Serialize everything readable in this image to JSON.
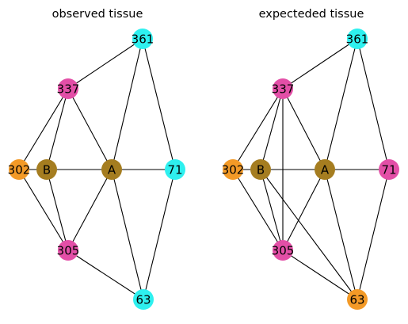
{
  "colors": {
    "cyan": "#2ef0ef",
    "pink": "#e34fa7",
    "orange": "#f39a27",
    "olive": "#a57d20"
  },
  "graphs": [
    {
      "title": "observed tissue",
      "nodes": [
        {
          "id": "361",
          "label": "361",
          "color": "cyan"
        },
        {
          "id": "337",
          "label": "337",
          "color": "pink"
        },
        {
          "id": "302",
          "label": "302",
          "color": "orange"
        },
        {
          "id": "B",
          "label": "B",
          "color": "olive"
        },
        {
          "id": "A",
          "label": "A",
          "color": "olive"
        },
        {
          "id": "71",
          "label": "71",
          "color": "cyan"
        },
        {
          "id": "305",
          "label": "305",
          "color": "pink"
        },
        {
          "id": "63",
          "label": "63",
          "color": "cyan"
        }
      ],
      "edges": [
        [
          "361",
          "337"
        ],
        [
          "361",
          "A"
        ],
        [
          "361",
          "71"
        ],
        [
          "337",
          "302"
        ],
        [
          "337",
          "B"
        ],
        [
          "337",
          "A"
        ],
        [
          "302",
          "B"
        ],
        [
          "302",
          "305"
        ],
        [
          "B",
          "A"
        ],
        [
          "B",
          "305"
        ],
        [
          "A",
          "71"
        ],
        [
          "A",
          "305"
        ],
        [
          "A",
          "63"
        ],
        [
          "71",
          "63"
        ],
        [
          "305",
          "63"
        ]
      ]
    },
    {
      "title": "expecteded tissue",
      "nodes": [
        {
          "id": "361",
          "label": "361",
          "color": "cyan"
        },
        {
          "id": "337",
          "label": "337",
          "color": "pink"
        },
        {
          "id": "302",
          "label": "302",
          "color": "orange"
        },
        {
          "id": "B",
          "label": "B",
          "color": "olive"
        },
        {
          "id": "A",
          "label": "A",
          "color": "olive"
        },
        {
          "id": "71",
          "label": "71",
          "color": "pink"
        },
        {
          "id": "305",
          "label": "305",
          "color": "pink"
        },
        {
          "id": "63",
          "label": "63",
          "color": "orange"
        }
      ],
      "edges": [
        [
          "361",
          "337"
        ],
        [
          "361",
          "A"
        ],
        [
          "361",
          "71"
        ],
        [
          "337",
          "302"
        ],
        [
          "337",
          "B"
        ],
        [
          "337",
          "A"
        ],
        [
          "337",
          "305"
        ],
        [
          "302",
          "B"
        ],
        [
          "302",
          "305"
        ],
        [
          "B",
          "A"
        ],
        [
          "B",
          "305"
        ],
        [
          "B",
          "63"
        ],
        [
          "A",
          "71"
        ],
        [
          "A",
          "305"
        ],
        [
          "A",
          "63"
        ],
        [
          "71",
          "63"
        ],
        [
          "305",
          "63"
        ]
      ]
    }
  ]
}
